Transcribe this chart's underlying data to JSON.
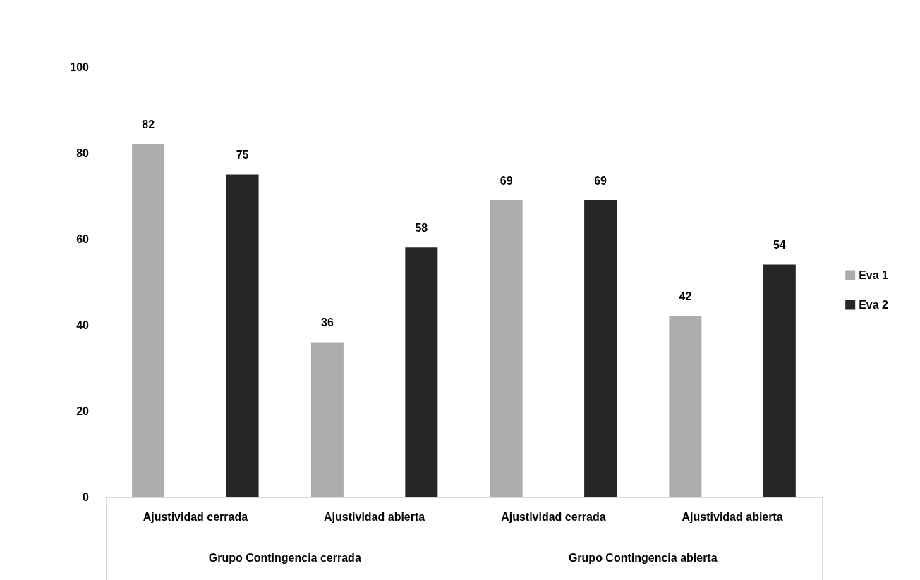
{
  "chart_data": {
    "type": "bar",
    "categories": [
      "Ajustividad cerrada",
      "Ajustividad abierta",
      "Ajustividad cerrada",
      "Ajustividad abierta"
    ],
    "series": [
      {
        "name": "Eva 1",
        "color": "#adadad",
        "values": [
          82,
          36,
          69,
          42
        ]
      },
      {
        "name": "Eva 2",
        "color": "#262626",
        "values": [
          75,
          58,
          69,
          54
        ]
      }
    ],
    "ylim": [
      0,
      100
    ],
    "yticks": [
      0,
      20,
      40,
      60,
      80,
      100
    ],
    "grid": false,
    "legend": "right",
    "data_labels": true,
    "annotations": [
      "Grupo Contingencia cerrada",
      "Grupo Contingencia abierta"
    ]
  }
}
